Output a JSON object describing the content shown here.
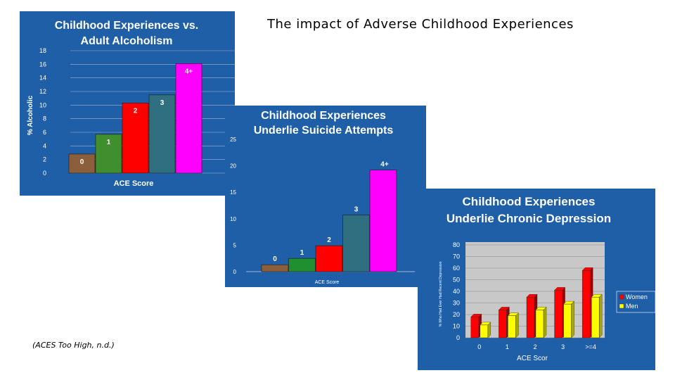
{
  "slide": {
    "title": "The impact of Adverse Childhood Experiences",
    "citation": "(ACES Too High, n.d.)"
  },
  "chart_data": [
    {
      "type": "bar",
      "title": [
        "Childhood Experiences vs.",
        "Adult Alcoholism"
      ],
      "xlabel": "ACE Score",
      "ylabel": "% Alcoholic",
      "categories": [
        "0",
        "1",
        "2",
        "3",
        "4+"
      ],
      "values": [
        2.8,
        5.7,
        10.3,
        11.5,
        16.1
      ],
      "colors": [
        "#8b5e3c",
        "#3f8f2f",
        "#ff0000",
        "#2f6f80",
        "#ff00ff"
      ],
      "ylim": [
        0,
        18
      ],
      "yticks": [
        0,
        2,
        4,
        6,
        8,
        10,
        12,
        14,
        16,
        18
      ],
      "grid": true
    },
    {
      "type": "bar",
      "title": [
        "Childhood Experiences",
        "Underlie Suicide Attempts"
      ],
      "xlabel": "ACE Score",
      "ylabel": "",
      "categories": [
        "0",
        "1",
        "2",
        "3",
        "4+"
      ],
      "values": [
        1.3,
        2.5,
        4.9,
        10.7,
        19.2
      ],
      "colors": [
        "#8b5e3c",
        "#1f8f2f",
        "#ff0000",
        "#2f6f80",
        "#ff00ff"
      ],
      "ylim": [
        0,
        25
      ],
      "yticks": [
        0,
        5,
        10,
        15,
        20,
        25
      ],
      "grid": false
    },
    {
      "type": "bar",
      "title": [
        "Childhood Experiences",
        "Underlie Chronic Depression"
      ],
      "xlabel": "ACE Scor",
      "ylabel": "% Who Had Ever Had Recent Depression",
      "categories": [
        "0",
        "1",
        "2",
        "3",
        ">=4"
      ],
      "series": [
        {
          "name": "Women",
          "values": [
            18,
            24,
            35,
            41,
            58
          ],
          "color": "#ff0000"
        },
        {
          "name": "Men",
          "values": [
            11,
            19,
            24,
            29,
            35
          ],
          "color": "#ffff00"
        }
      ],
      "ylim": [
        0,
        80
      ],
      "yticks": [
        0,
        10,
        20,
        30,
        40,
        50,
        60,
        70,
        80
      ],
      "legend": "right",
      "grid": true
    }
  ]
}
